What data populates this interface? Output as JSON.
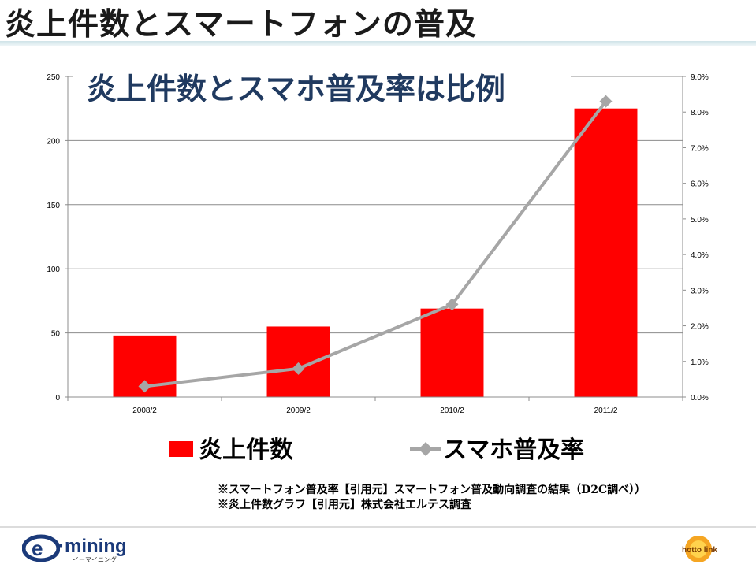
{
  "slide": {
    "title": "炎上件数とスマートフォンの普及",
    "source_notes": [
      "※スマートフォン普及率【引用元】スマートフォン普及動向調査の結果（D2C調べ））",
      "※炎上件数グラフ【引用元】株式会社エルテス調査"
    ]
  },
  "branding": {
    "left_logo_text": "·mining",
    "left_logo_letter": "e",
    "left_logo_kana": "イーマイニング",
    "right_logo_text": "hotto link"
  },
  "chart_data": {
    "type": "bar",
    "headline": "炎上件数とスマホ普及率は比例",
    "categories": [
      "2008/2",
      "2009/2",
      "2010/2",
      "2011/2"
    ],
    "series": [
      {
        "name": "炎上件数",
        "type": "bar",
        "axis": "left",
        "color": "#ff0000",
        "values": [
          48,
          55,
          69,
          225
        ]
      },
      {
        "name": "スマホ普及率",
        "type": "line",
        "axis": "right",
        "color": "#a6a6a6",
        "marker": "diamond",
        "values": [
          0.003,
          0.008,
          0.026,
          0.083
        ]
      }
    ],
    "y_left": {
      "min": 0,
      "max": 250,
      "ticks": [
        "0",
        "50",
        "100",
        "150",
        "200",
        "250"
      ]
    },
    "y_right": {
      "min": 0,
      "max": 0.09,
      "ticks": [
        "0.0%",
        "1.0%",
        "2.0%",
        "3.0%",
        "4.0%",
        "5.0%",
        "6.0%",
        "7.0%",
        "8.0%",
        "9.0%"
      ]
    },
    "grid": true,
    "legend_position": "bottom",
    "colors": {
      "bar": "#ff0000",
      "line": "#a6a6a6",
      "headline": "#203a60"
    }
  }
}
